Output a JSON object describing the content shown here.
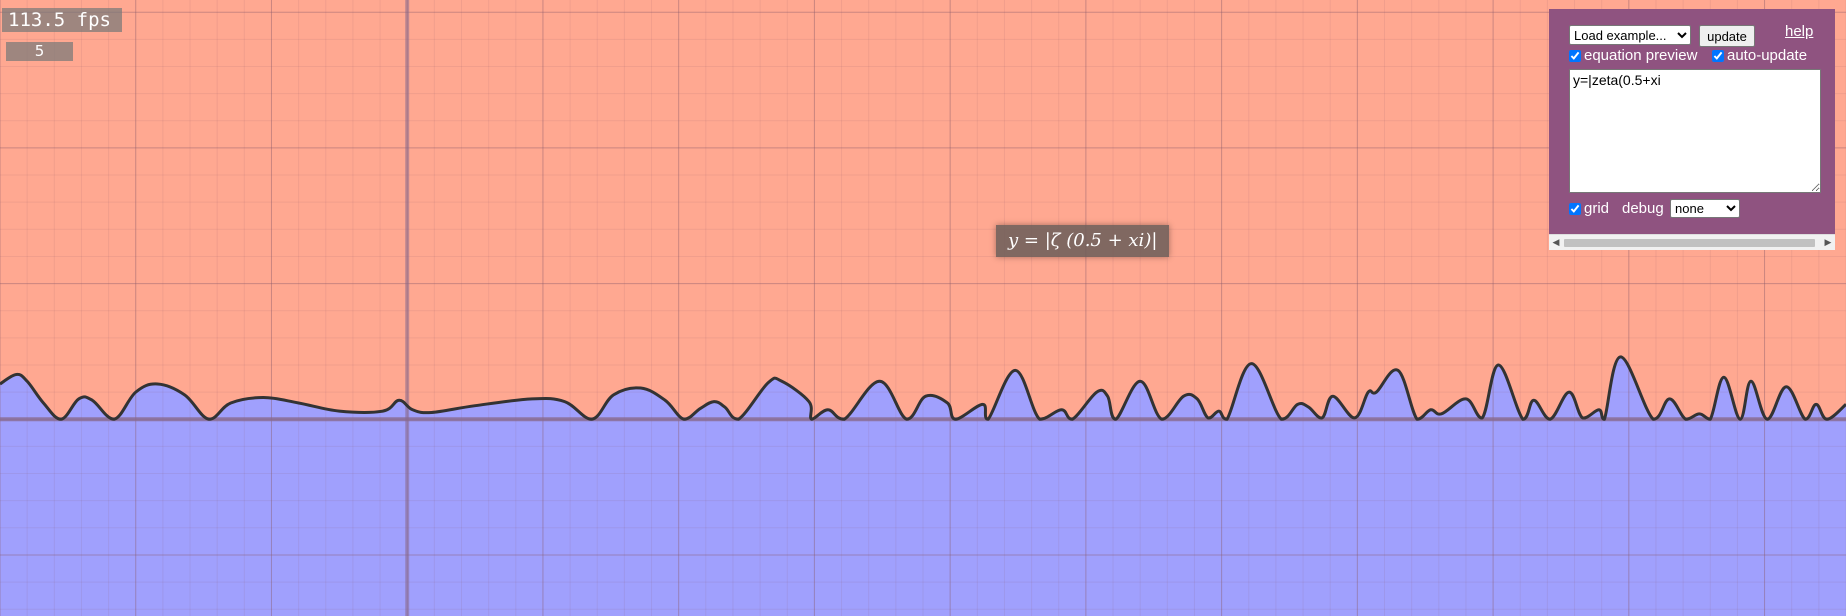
{
  "fps_label": "113.5 fps",
  "stat_value": "5",
  "equation_preview": "y = |ζ (0.5 + xi)|",
  "panel": {
    "example_select": {
      "selected": "Load example...",
      "options": [
        "Load example..."
      ]
    },
    "update_label": "update",
    "help_label": "help",
    "equation_preview_label": "equation preview",
    "equation_preview_checked": true,
    "auto_update_label": "auto-update",
    "auto_update_checked": true,
    "equation_text": "y=|zeta(0.5+xi",
    "grid_label": "grid",
    "grid_checked": true,
    "debug_label": "debug",
    "debug_select": {
      "selected": "none",
      "options": [
        "none"
      ]
    }
  },
  "colors": {
    "above_fill": "#ffa891",
    "below_fill": "#a0a0fd",
    "grid_line": "#8a5a6a",
    "axis_line": "#886a8e",
    "curve": "#333333",
    "panel_bg": "#8f5380"
  },
  "chart_data": {
    "type": "area",
    "title": "y = |ζ(0.5 + xi)|",
    "xlim": [
      0,
      68
    ],
    "ylim": [
      -1.45,
      3.09
    ],
    "grid": true,
    "x_axis_label": "",
    "y_axis_label": "",
    "curve_points": [
      [
        0,
        0.26
      ],
      [
        0.6,
        0.33
      ],
      [
        1,
        0.28
      ],
      [
        1.6,
        0.12
      ],
      [
        2.25,
        0
      ],
      [
        2.9,
        0.15
      ],
      [
        3.4,
        0.14
      ],
      [
        4.2,
        0
      ],
      [
        5,
        0.2
      ],
      [
        5.8,
        0.26
      ],
      [
        6.8,
        0.18
      ],
      [
        7.7,
        0
      ],
      [
        8.5,
        0.12
      ],
      [
        9.7,
        0.16
      ],
      [
        11,
        0.12
      ],
      [
        12.5,
        0.06
      ],
      [
        14.1,
        0.06
      ],
      [
        14.7,
        0.14
      ],
      [
        15.2,
        0.07
      ],
      [
        15.9,
        0.05
      ],
      [
        17.5,
        0.1
      ],
      [
        19.6,
        0.15
      ],
      [
        20.8,
        0.13
      ],
      [
        21.8,
        0
      ],
      [
        22.6,
        0.18
      ],
      [
        23.6,
        0.23
      ],
      [
        24.5,
        0.14
      ],
      [
        25.2,
        0
      ],
      [
        25.8,
        0.08
      ],
      [
        26.3,
        0.13
      ],
      [
        26.7,
        0.09
      ],
      [
        27.2,
        0
      ],
      [
        28.3,
        0.27
      ],
      [
        28.8,
        0.28
      ],
      [
        29.8,
        0.13
      ],
      [
        29.9,
        0
      ],
      [
        30.5,
        0.07
      ],
      [
        31.1,
        0
      ],
      [
        32.4,
        0.28
      ],
      [
        33.4,
        0
      ],
      [
        34.1,
        0.17
      ],
      [
        34.9,
        0.12
      ],
      [
        35.2,
        0
      ],
      [
        36.2,
        0.11
      ],
      [
        36.4,
        0
      ],
      [
        37.4,
        0.36
      ],
      [
        38.3,
        0
      ],
      [
        39.1,
        0.07
      ],
      [
        39.5,
        0
      ],
      [
        40.4,
        0.2
      ],
      [
        40.8,
        0.17
      ],
      [
        41.1,
        0
      ],
      [
        42,
        0.28
      ],
      [
        42.8,
        0
      ],
      [
        43.6,
        0.17
      ],
      [
        44.1,
        0.15
      ],
      [
        44.5,
        0.01
      ],
      [
        44.9,
        0.06
      ],
      [
        45.2,
        0
      ],
      [
        46.1,
        0.41
      ],
      [
        47.2,
        0
      ],
      [
        47.8,
        0.11
      ],
      [
        48.2,
        0.09
      ],
      [
        48.7,
        0.01
      ],
      [
        49.1,
        0.17
      ],
      [
        49.9,
        0.01
      ],
      [
        50.4,
        0.2
      ],
      [
        50.7,
        0.2
      ],
      [
        51.5,
        0.36
      ],
      [
        52.2,
        0
      ],
      [
        52.7,
        0.07
      ],
      [
        53.1,
        0.04
      ],
      [
        54,
        0.15
      ],
      [
        54.6,
        0.01
      ],
      [
        55.2,
        0.4
      ],
      [
        56.1,
        0
      ],
      [
        56.5,
        0.14
      ],
      [
        57.1,
        0
      ],
      [
        57.8,
        0.2
      ],
      [
        58.3,
        0.01
      ],
      [
        58.9,
        0.07
      ],
      [
        59.1,
        0
      ],
      [
        59.7,
        0.46
      ],
      [
        60.9,
        0
      ],
      [
        61.5,
        0.15
      ],
      [
        62.1,
        0
      ],
      [
        62.6,
        0.04
      ],
      [
        63,
        0
      ],
      [
        63.5,
        0.31
      ],
      [
        64.1,
        0
      ],
      [
        64.5,
        0.28
      ],
      [
        65.1,
        0
      ],
      [
        65.8,
        0.24
      ],
      [
        66.5,
        0
      ],
      [
        66.9,
        0.11
      ],
      [
        67.3,
        0
      ],
      [
        68,
        0.11
      ]
    ]
  }
}
